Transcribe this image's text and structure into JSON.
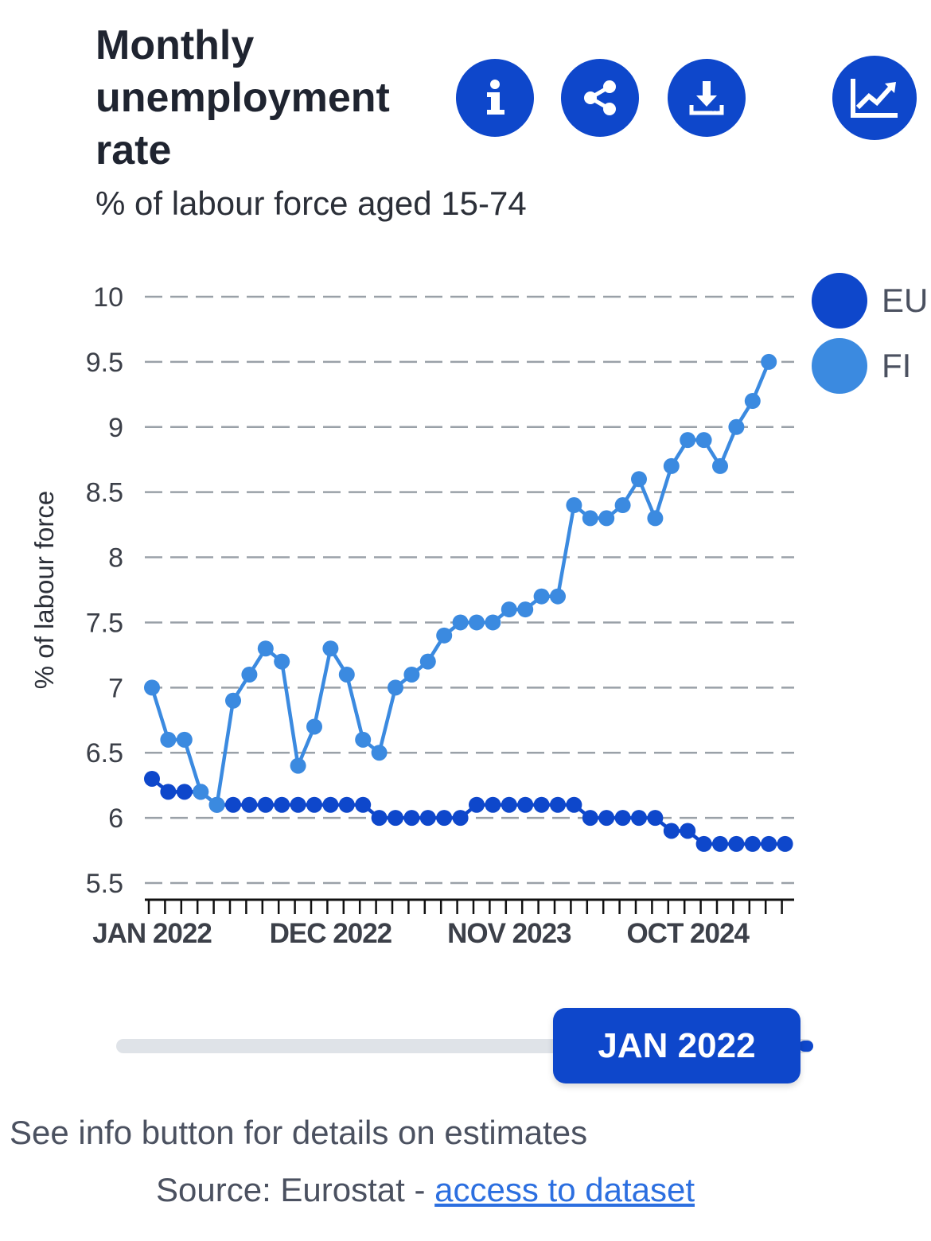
{
  "header": {
    "title": "Monthly unemployment rate",
    "subtitle": "% of labour force aged 15-74"
  },
  "toolbar": {
    "icons": [
      "info-icon",
      "share-icon",
      "download-icon",
      "chart-type-icon"
    ]
  },
  "colors": {
    "accent": "#0e47cb",
    "eu": "#0e47cb",
    "fi": "#3b8ae0"
  },
  "slider": {
    "label": "JAN 2022"
  },
  "footer": {
    "note": "See info button for details on estimates",
    "source_prefix": "Source: Eurostat - ",
    "source_link": "access to dataset"
  },
  "chart_data": {
    "type": "line",
    "title": "Monthly unemployment rate",
    "subtitle": "% of labour force aged 15-74",
    "xlabel": "",
    "ylabel": "% of labour force",
    "ylim": [
      5.5,
      10
    ],
    "yticks": [
      "10",
      "9.5",
      "9",
      "8.5",
      "8",
      "7.5",
      "7",
      "6.5",
      "6",
      "5.5"
    ],
    "xtick_labels": [
      {
        "label": "JAN 2022",
        "index": 0
      },
      {
        "label": "DEC 2022",
        "index": 11
      },
      {
        "label": "NOV 2023",
        "index": 22
      },
      {
        "label": "OCT 2024",
        "index": 33
      }
    ],
    "categories": [
      "2022-01",
      "2022-02",
      "2022-03",
      "2022-04",
      "2022-05",
      "2022-06",
      "2022-07",
      "2022-08",
      "2022-09",
      "2022-10",
      "2022-11",
      "2022-12",
      "2023-01",
      "2023-02",
      "2023-03",
      "2023-04",
      "2023-05",
      "2023-06",
      "2023-07",
      "2023-08",
      "2023-09",
      "2023-10",
      "2023-11",
      "2023-12",
      "2024-01",
      "2024-02",
      "2024-03",
      "2024-04",
      "2024-05",
      "2024-06",
      "2024-07",
      "2024-08",
      "2024-09",
      "2024-10",
      "2024-11",
      "2024-12",
      "2025-01",
      "2025-02",
      "2025-03",
      "2025-04"
    ],
    "grid": true,
    "legend": "right",
    "series": [
      {
        "name": "EU",
        "values": [
          6.3,
          6.2,
          6.2,
          6.2,
          6.1,
          6.1,
          6.1,
          6.1,
          6.1,
          6.1,
          6.1,
          6.1,
          6.1,
          6.1,
          6.0,
          6.0,
          6.0,
          6.0,
          6.0,
          6.0,
          6.1,
          6.1,
          6.1,
          6.1,
          6.1,
          6.1,
          6.1,
          6.0,
          6.0,
          6.0,
          6.0,
          6.0,
          5.9,
          5.9,
          5.8,
          5.8,
          5.8,
          5.8,
          5.8,
          5.8
        ]
      },
      {
        "name": "FI",
        "values": [
          7.0,
          6.6,
          6.6,
          6.2,
          6.1,
          6.9,
          7.1,
          7.3,
          7.2,
          6.4,
          6.7,
          7.3,
          7.1,
          6.6,
          6.5,
          7.0,
          7.1,
          7.2,
          7.4,
          7.5,
          7.5,
          7.5,
          7.6,
          7.6,
          7.7,
          7.7,
          8.4,
          8.3,
          8.3,
          8.4,
          8.6,
          8.3,
          8.7,
          8.9,
          8.9,
          8.7,
          9.0,
          9.2,
          9.5,
          null
        ]
      }
    ]
  }
}
